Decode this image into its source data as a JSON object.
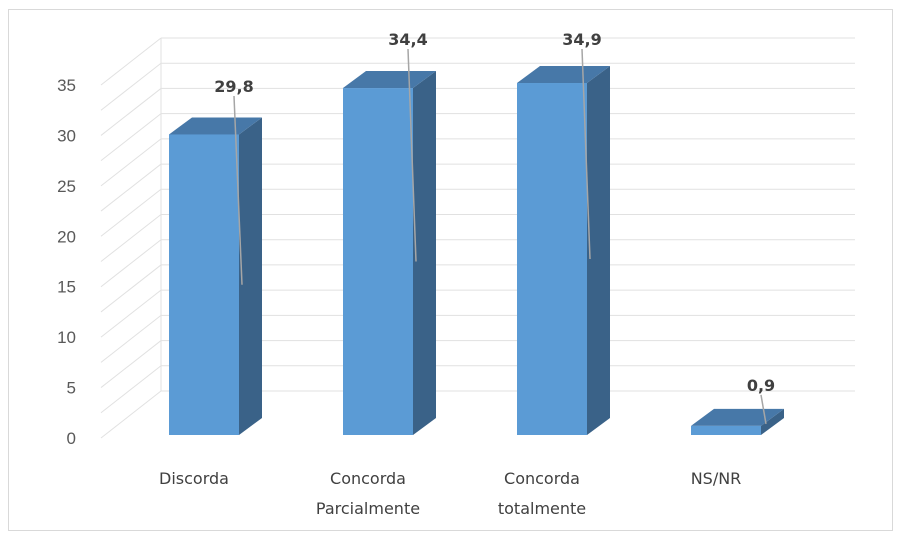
{
  "chart_data": {
    "type": "bar",
    "style": "3d-column",
    "categories": [
      "Discorda",
      "Concorda\nParcialmente",
      "Concorda\ntotalmente",
      "NS/NR"
    ],
    "values": [
      29.8,
      34.4,
      34.9,
      0.9
    ],
    "data_labels": [
      "29,8",
      "34,4",
      "34,9",
      "0,9"
    ],
    "y_ticks": [
      "0",
      "5",
      "10",
      "15",
      "20",
      "25",
      "30",
      "35"
    ],
    "ylim": [
      0,
      35
    ],
    "grid": true,
    "legend": "none",
    "colors": {
      "bar_front": "#5b9bd5",
      "bar_side": "#3a6288",
      "bar_top": "#4778a8",
      "grid": "#e1e1e1",
      "leader": "#a6a6a6"
    }
  }
}
